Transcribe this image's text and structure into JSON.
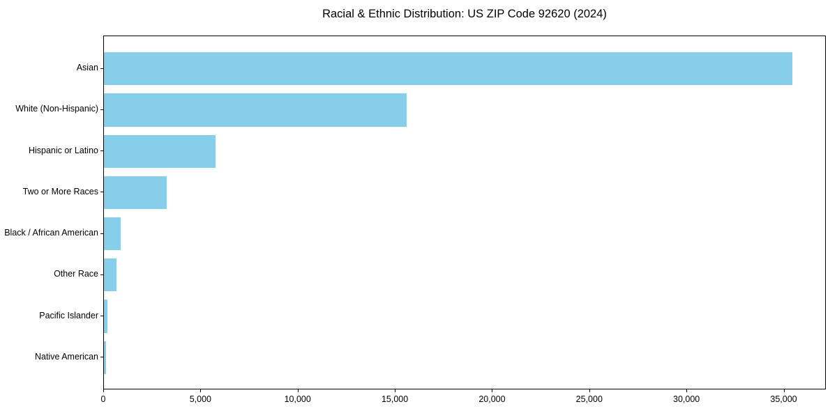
{
  "chart_data": {
    "type": "bar",
    "orientation": "horizontal",
    "title": "Racial & Ethnic Distribution: US ZIP Code 92620 (2024)",
    "categories": [
      "Asian",
      "White (Non-Hispanic)",
      "Hispanic or Latino",
      "Two or More Races",
      "Black / African American",
      "Other Race",
      "Pacific Islander",
      "Native American"
    ],
    "values": [
      35400,
      15580,
      5730,
      3220,
      850,
      630,
      180,
      100
    ],
    "xlabel": "",
    "ylabel": "",
    "xlim": [
      0,
      37170
    ],
    "x_ticks": [
      0,
      5000,
      10000,
      15000,
      20000,
      25000,
      30000,
      35000
    ],
    "x_tick_labels": [
      "0",
      "5,000",
      "10,000",
      "15,000",
      "20,000",
      "25,000",
      "30,000",
      "35,000"
    ],
    "bar_color": "#87CEEB",
    "frame_color": "#000000",
    "background": "#FFFFFF",
    "grid": false,
    "legend": "none"
  }
}
